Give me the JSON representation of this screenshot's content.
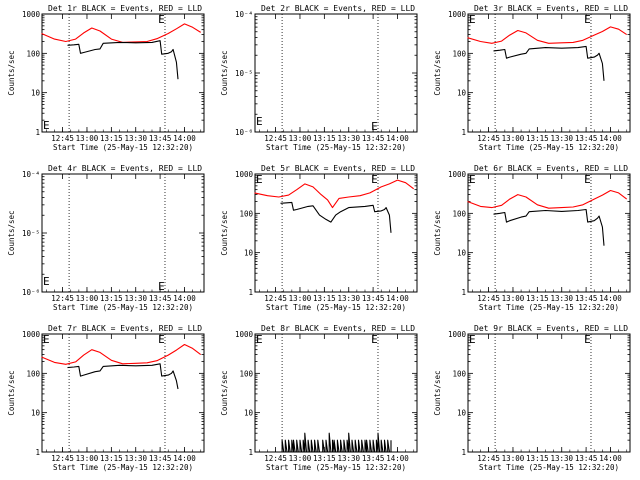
{
  "chart_data": [
    {
      "id": "1r",
      "title": "Det 1r BLACK = Events, RED = LLD",
      "type": "line",
      "yscale": "log",
      "ylim": [
        1,
        1000
      ],
      "yticks": [
        {
          "v": 1,
          "label": "1"
        },
        {
          "v": 10,
          "label": "10"
        },
        {
          "v": 100,
          "label": "100"
        },
        {
          "v": 1000,
          "label": "1000"
        }
      ],
      "ylabel": "Counts/sec",
      "xlabel": "Start Time (25-May-15 12:32:20)",
      "xlim": [
        "12:32:20",
        "14:12:00"
      ],
      "xticks": [
        "12:45",
        "13:00",
        "13:15",
        "13:30",
        "13:45",
        "14:00"
      ],
      "markers": [
        {
          "t": "12:32:20",
          "y": 1.6
        },
        {
          "t": "13:45",
          "y": 950
        }
      ],
      "vlines": [
        "12:49",
        "13:48"
      ],
      "series": [
        {
          "name": "LLD",
          "color": "#ff0000",
          "t": [
            "12:32",
            "12:40",
            "12:47",
            "12:53",
            "12:58",
            "13:03",
            "13:08",
            "13:15",
            "13:22",
            "13:30",
            "13:37",
            "13:43",
            "13:50",
            "13:55",
            "14:00",
            "14:05",
            "14:10"
          ],
          "y": [
            320,
            230,
            200,
            230,
            330,
            440,
            370,
            230,
            190,
            195,
            200,
            235,
            320,
            420,
            560,
            460,
            340
          ]
        },
        {
          "name": "Events",
          "color": "#000000",
          "t": [
            "12:48",
            "12:52",
            "12:55",
            "12:56",
            "12:58",
            "13:05",
            "13:08",
            "13:10",
            "13:20",
            "13:30",
            "13:40",
            "13:45",
            "13:46",
            "13:50",
            "13:52",
            "13:53",
            "13:55",
            "13:56"
          ],
          "y": [
            160,
            165,
            170,
            100,
            105,
            125,
            130,
            180,
            190,
            185,
            190,
            210,
            95,
            100,
            110,
            125,
            60,
            22
          ]
        }
      ]
    },
    {
      "id": "2r",
      "title": "Det 2r BLACK = Events, RED = LLD",
      "type": "line",
      "yscale": "log",
      "ylim": [
        1e-06,
        0.0001
      ],
      "yticks": [
        {
          "v": 1e-06,
          "label": "10⁻⁶"
        },
        {
          "v": 1e-05,
          "label": "10⁻⁵"
        },
        {
          "v": 0.0001,
          "label": "10⁻⁴"
        }
      ],
      "ylabel": "Counts/sec",
      "xlabel": "Start Time (25-May-15 12:32:20)",
      "xlim": [
        "12:32:20",
        "14:12:00"
      ],
      "xticks": [
        "12:45",
        "13:00",
        "13:15",
        "13:30",
        "13:45",
        "14:00"
      ],
      "markers": [
        {
          "t": "12:32:20",
          "y": 1.6e-06
        },
        {
          "t": "13:45",
          "y": 1.3e-06
        }
      ],
      "vlines": [
        "12:49",
        "13:48"
      ],
      "series": []
    },
    {
      "id": "3r",
      "title": "Det 3r BLACK = Events, RED = LLD",
      "type": "line",
      "yscale": "log",
      "ylim": [
        1,
        1000
      ],
      "yticks": [
        {
          "v": 1,
          "label": "1"
        },
        {
          "v": 10,
          "label": "10"
        },
        {
          "v": 100,
          "label": "100"
        },
        {
          "v": 1000,
          "label": "1000"
        }
      ],
      "ylabel": "Counts/sec",
      "xlabel": "Start Time (25-May-15 12:32:20)",
      "xlim": [
        "12:32:20",
        "14:12:00"
      ],
      "xticks": [
        "12:45",
        "13:00",
        "13:15",
        "13:30",
        "13:45",
        "14:00"
      ],
      "markers": [
        {
          "t": "12:32:20",
          "y": 950
        },
        {
          "t": "13:45",
          "y": 950
        }
      ],
      "vlines": [
        "12:49",
        "13:48"
      ],
      "series": [
        {
          "name": "LLD",
          "color": "#ff0000",
          "t": [
            "12:32",
            "12:40",
            "12:47",
            "12:53",
            "12:58",
            "13:03",
            "13:08",
            "13:15",
            "13:22",
            "13:30",
            "13:37",
            "13:43",
            "13:50",
            "13:55",
            "14:00",
            "14:05",
            "14:10"
          ],
          "y": [
            250,
            200,
            180,
            205,
            290,
            380,
            330,
            215,
            180,
            185,
            190,
            215,
            290,
            360,
            470,
            410,
            300
          ]
        },
        {
          "name": "Events",
          "color": "#000000",
          "t": [
            "12:48",
            "12:52",
            "12:55",
            "12:56",
            "12:58",
            "13:05",
            "13:08",
            "13:10",
            "13:20",
            "13:30",
            "13:40",
            "13:45",
            "13:46",
            "13:50",
            "13:52",
            "13:53",
            "13:55",
            "13:56"
          ],
          "y": [
            115,
            120,
            125,
            75,
            80,
            95,
            100,
            130,
            140,
            135,
            140,
            150,
            75,
            80,
            90,
            100,
            55,
            20
          ]
        }
      ]
    },
    {
      "id": "4r",
      "title": "Det 4r BLACK = Events, RED = LLD",
      "type": "line",
      "yscale": "log",
      "ylim": [
        1e-06,
        0.0001
      ],
      "yticks": [
        {
          "v": 1e-06,
          "label": "10⁻⁶"
        },
        {
          "v": 1e-05,
          "label": "10⁻⁵"
        },
        {
          "v": 0.0001,
          "label": "10⁻⁴"
        }
      ],
      "ylabel": "Counts/sec",
      "xlabel": "Start Time (25-May-15 12:32:20)",
      "xlim": [
        "12:32:20",
        "14:12:00"
      ],
      "xticks": [
        "12:45",
        "13:00",
        "13:15",
        "13:30",
        "13:45",
        "14:00"
      ],
      "markers": [
        {
          "t": "12:32:20",
          "y": 1.6e-06
        },
        {
          "t": "13:45",
          "y": 1.3e-06
        }
      ],
      "vlines": [
        "12:49",
        "13:48"
      ],
      "series": []
    },
    {
      "id": "5r",
      "title": "Det 5r BLACK = Events, RED = LLD",
      "type": "line",
      "yscale": "log",
      "ylim": [
        1,
        1000
      ],
      "yticks": [
        {
          "v": 1,
          "label": "1"
        },
        {
          "v": 10,
          "label": "10"
        },
        {
          "v": 100,
          "label": "100"
        },
        {
          "v": 1000,
          "label": "1000"
        }
      ],
      "ylabel": "Counts/sec",
      "xlabel": "Start Time (25-May-15 12:32:20)",
      "xlim": [
        "12:32:20",
        "14:12:00"
      ],
      "xticks": [
        "12:45",
        "13:00",
        "13:15",
        "13:30",
        "13:45",
        "14:00"
      ],
      "markers": [
        {
          "t": "12:32:20",
          "y": 950
        },
        {
          "t": "13:45",
          "y": 950
        }
      ],
      "vlines": [
        "12:49",
        "13:48"
      ],
      "series": [
        {
          "name": "LLD",
          "color": "#ff0000",
          "t": [
            "12:32",
            "12:40",
            "12:47",
            "12:53",
            "12:58",
            "13:03",
            "13:08",
            "13:13",
            "13:17",
            "13:20",
            "13:24",
            "13:30",
            "13:37",
            "13:43",
            "13:50",
            "13:55",
            "14:00",
            "14:05",
            "14:10"
          ],
          "y": [
            330,
            280,
            260,
            290,
            400,
            560,
            470,
            300,
            220,
            140,
            240,
            260,
            280,
            330,
            470,
            560,
            700,
            600,
            420
          ]
        },
        {
          "name": "Events",
          "color": "#000000",
          "t": [
            "12:48",
            "12:52",
            "12:55",
            "12:56",
            "12:58",
            "13:05",
            "13:08",
            "13:12",
            "13:16",
            "13:19",
            "13:22",
            "13:25",
            "13:30",
            "13:40",
            "13:45",
            "13:46",
            "13:50",
            "13:52",
            "13:53",
            "13:55",
            "13:56"
          ],
          "y": [
            180,
            185,
            190,
            120,
            125,
            150,
            155,
            90,
            70,
            60,
            90,
            110,
            140,
            150,
            160,
            110,
            115,
            125,
            140,
            90,
            32
          ]
        }
      ]
    },
    {
      "id": "6r",
      "title": "Det 6r BLACK = Events, RED = LLD",
      "type": "line",
      "yscale": "log",
      "ylim": [
        1,
        1000
      ],
      "yticks": [
        {
          "v": 1,
          "label": "1"
        },
        {
          "v": 10,
          "label": "10"
        },
        {
          "v": 100,
          "label": "100"
        },
        {
          "v": 1000,
          "label": "1000"
        }
      ],
      "ylabel": "Counts/sec",
      "xlabel": "Start Time (25-May-15 12:32:20)",
      "xlim": [
        "12:32:20",
        "14:12:00"
      ],
      "xticks": [
        "12:45",
        "13:00",
        "13:15",
        "13:30",
        "13:45",
        "14:00"
      ],
      "markers": [
        {
          "t": "12:32:20",
          "y": 950
        },
        {
          "t": "13:45",
          "y": 950
        }
      ],
      "vlines": [
        "12:49",
        "13:48"
      ],
      "series": [
        {
          "name": "LLD",
          "color": "#ff0000",
          "t": [
            "12:32",
            "12:40",
            "12:47",
            "12:53",
            "12:58",
            "13:03",
            "13:08",
            "13:15",
            "13:22",
            "13:30",
            "13:37",
            "13:43",
            "13:50",
            "13:55",
            "14:00",
            "14:05",
            "14:10"
          ],
          "y": [
            200,
            150,
            140,
            160,
            230,
            300,
            260,
            165,
            135,
            140,
            145,
            165,
            230,
            290,
            380,
            330,
            230
          ]
        },
        {
          "name": "Events",
          "color": "#000000",
          "t": [
            "12:48",
            "12:52",
            "12:55",
            "12:56",
            "12:58",
            "13:05",
            "13:08",
            "13:10",
            "13:20",
            "13:30",
            "13:40",
            "13:45",
            "13:46",
            "13:50",
            "13:52",
            "13:53",
            "13:55",
            "13:56"
          ],
          "y": [
            95,
            100,
            105,
            60,
            65,
            80,
            85,
            110,
            118,
            112,
            118,
            125,
            60,
            65,
            75,
            85,
            45,
            15
          ]
        }
      ]
    },
    {
      "id": "7r",
      "title": "Det 7r BLACK = Events, RED = LLD",
      "type": "line",
      "yscale": "log",
      "ylim": [
        1,
        1000
      ],
      "yticks": [
        {
          "v": 1,
          "label": "1"
        },
        {
          "v": 10,
          "label": "10"
        },
        {
          "v": 100,
          "label": "100"
        },
        {
          "v": 1000,
          "label": "1000"
        }
      ],
      "ylabel": "Counts/sec",
      "xlabel": "Start Time (25-May-15 12:32:20)",
      "xlim": [
        "12:32:20",
        "14:12:00"
      ],
      "xticks": [
        "12:45",
        "13:00",
        "13:15",
        "13:30",
        "13:45",
        "14:00"
      ],
      "markers": [
        {
          "t": "12:32:20",
          "y": 950
        },
        {
          "t": "13:45",
          "y": 950
        }
      ],
      "vlines": [
        "12:49",
        "13:48"
      ],
      "series": [
        {
          "name": "LLD",
          "color": "#ff0000",
          "t": [
            "12:32",
            "12:40",
            "12:47",
            "12:53",
            "12:58",
            "13:03",
            "13:08",
            "13:15",
            "13:22",
            "13:30",
            "13:37",
            "13:43",
            "13:50",
            "13:55",
            "14:00",
            "14:05",
            "14:10"
          ],
          "y": [
            260,
            190,
            170,
            195,
            290,
            400,
            340,
            215,
            175,
            180,
            185,
            210,
            290,
            390,
            540,
            430,
            300
          ]
        },
        {
          "name": "Events",
          "color": "#000000",
          "t": [
            "12:48",
            "12:52",
            "12:55",
            "12:56",
            "12:58",
            "13:05",
            "13:08",
            "13:10",
            "13:20",
            "13:30",
            "13:40",
            "13:45",
            "13:46",
            "13:50",
            "13:52",
            "13:53",
            "13:55",
            "13:56"
          ],
          "y": [
            140,
            145,
            150,
            85,
            90,
            110,
            115,
            150,
            160,
            155,
            160,
            175,
            85,
            90,
            100,
            115,
            65,
            40
          ]
        }
      ]
    },
    {
      "id": "8r",
      "title": "Det 8r BLACK = Events, RED = LLD",
      "type": "line",
      "yscale": "log",
      "ylim": [
        1,
        1000
      ],
      "yticks": [
        {
          "v": 1,
          "label": "1"
        },
        {
          "v": 10,
          "label": "10"
        },
        {
          "v": 100,
          "label": "100"
        },
        {
          "v": 1000,
          "label": "1000"
        }
      ],
      "ylabel": "Counts/sec",
      "xlabel": "Start Time (25-May-15 12:32:20)",
      "xlim": [
        "12:32:20",
        "14:12:00"
      ],
      "xticks": [
        "12:45",
        "13:00",
        "13:15",
        "13:30",
        "13:45",
        "14:00"
      ],
      "markers": [
        {
          "t": "12:32:20",
          "y": 950
        },
        {
          "t": "13:45",
          "y": 950
        }
      ],
      "vlines": [
        "12:49",
        "13:48"
      ],
      "series": [
        {
          "name": "Events",
          "color": "#000000",
          "t": [
            "12:48",
            "12:49",
            "12:50",
            "12:51",
            "12:52",
            "12:53",
            "12:54",
            "12:55",
            "12:56",
            "12:57",
            "12:58",
            "12:59",
            "13:00",
            "13:01",
            "13:02",
            "13:03",
            "13:04",
            "13:05",
            "13:06",
            "13:07",
            "13:08",
            "13:09",
            "13:10",
            "13:11",
            "13:12",
            "13:13",
            "13:14",
            "13:15",
            "13:16",
            "13:17",
            "13:18",
            "13:19",
            "13:20",
            "13:21",
            "13:22",
            "13:23",
            "13:24",
            "13:25",
            "13:26",
            "13:27",
            "13:28",
            "13:29",
            "13:30",
            "13:31",
            "13:32",
            "13:33",
            "13:34",
            "13:35",
            "13:36",
            "13:37",
            "13:38",
            "13:39",
            "13:40",
            "13:41",
            "13:42",
            "13:43",
            "13:44",
            "13:45",
            "13:46",
            "13:47",
            "13:48",
            "13:49",
            "13:50",
            "13:51",
            "13:52",
            "13:53",
            "13:54",
            "13:55",
            "13:56"
          ],
          "y": [
            1,
            2,
            1,
            2,
            1,
            2,
            1,
            2,
            2,
            1,
            2,
            1,
            2,
            1,
            2,
            3,
            1,
            2,
            1,
            2,
            1,
            2,
            1,
            2,
            1,
            1,
            2,
            1,
            2,
            1,
            3,
            1,
            2,
            2,
            1,
            2,
            1,
            2,
            1,
            2,
            1,
            2,
            3,
            1,
            2,
            1,
            2,
            1,
            2,
            1,
            2,
            1,
            2,
            2,
            1,
            2,
            1,
            2,
            1,
            2,
            3,
            1,
            2,
            1,
            2,
            1,
            2,
            1,
            2
          ]
        }
      ]
    },
    {
      "id": "9r",
      "title": "Det 9r BLACK = Events, RED = LLD",
      "type": "line",
      "yscale": "log",
      "ylim": [
        1,
        1000
      ],
      "yticks": [
        {
          "v": 1,
          "label": "1"
        },
        {
          "v": 10,
          "label": "10"
        },
        {
          "v": 100,
          "label": "100"
        },
        {
          "v": 1000,
          "label": "1000"
        }
      ],
      "ylabel": "Counts/sec",
      "xlabel": "Start Time (25-May-15 12:32:20)",
      "xlim": [
        "12:32:20",
        "14:12:00"
      ],
      "xticks": [
        "12:45",
        "13:00",
        "13:15",
        "13:30",
        "13:45",
        "14:00"
      ],
      "markers": [
        {
          "t": "12:32:20",
          "y": 950
        },
        {
          "t": "13:45",
          "y": 950
        }
      ],
      "vlines": [
        "12:49",
        "13:48"
      ],
      "series": []
    }
  ],
  "marker_label": "E"
}
